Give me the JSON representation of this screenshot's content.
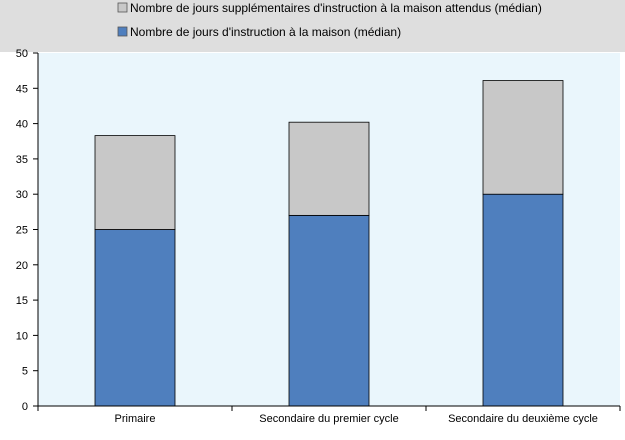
{
  "colors": {
    "plot_background": "#eaf6fc",
    "legend_background": "#dedede",
    "series_home": "#4f7fbe",
    "series_extra": "#c8c8c8",
    "outline": "#000000"
  },
  "chart_data": {
    "type": "bar",
    "stacked": true,
    "title": "",
    "xlabel": "",
    "ylabel": "",
    "ylim": [
      0,
      50
    ],
    "yticks": [
      0,
      5,
      10,
      15,
      20,
      25,
      30,
      35,
      40,
      45,
      50
    ],
    "grid": false,
    "legend_position": "top",
    "categories": [
      "Primaire",
      "Secondaire du premier cycle",
      "Secondaire du deuxième cycle"
    ],
    "series": [
      {
        "name": "Nombre de jours d'instruction à la maison (médian)",
        "color": "#4f7fbe",
        "values": [
          25,
          27,
          30
        ]
      },
      {
        "name": "Nombre de jours supplémentaires d'instruction à la maison attendus (médian)",
        "color": "#c8c8c8",
        "values": [
          13.3,
          13.2,
          16.1
        ]
      }
    ],
    "legend_order": [
      1,
      0
    ]
  }
}
